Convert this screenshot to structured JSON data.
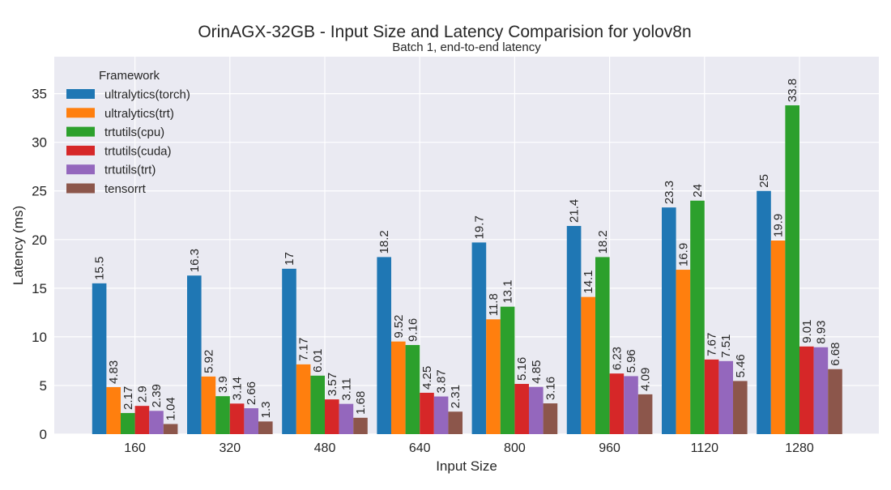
{
  "chart_data": {
    "type": "bar",
    "title": "OrinAGX-32GB - Input Size and Latency Comparision for yolov8n",
    "subtitle": "Batch 1, end-to-end latency",
    "xlabel": "Input Size",
    "ylabel": "Latency (ms)",
    "ylim": [
      0,
      38.8
    ],
    "yticks": [
      0,
      5,
      10,
      15,
      20,
      25,
      30,
      35
    ],
    "grid": true,
    "legend_title": "Framework",
    "legend_position": "top-left",
    "categories": [
      "160",
      "320",
      "480",
      "640",
      "800",
      "960",
      "1120",
      "1280"
    ],
    "series": [
      {
        "name": "ultralytics(torch)",
        "color": "#1f77b4",
        "values": [
          15.5,
          16.3,
          17,
          18.2,
          19.7,
          21.4,
          23.3,
          25
        ],
        "labels": [
          "15.5",
          "16.3",
          "17",
          "18.2",
          "19.7",
          "21.4",
          "23.3",
          "25"
        ]
      },
      {
        "name": "ultralytics(trt)",
        "color": "#ff7f0e",
        "values": [
          4.83,
          5.92,
          7.17,
          9.52,
          11.8,
          14.1,
          16.9,
          19.9
        ],
        "labels": [
          "4.83",
          "5.92",
          "7.17",
          "9.52",
          "11.8",
          "14.1",
          "16.9",
          "19.9"
        ]
      },
      {
        "name": "trtutils(cpu)",
        "color": "#2ca02c",
        "values": [
          2.17,
          3.9,
          6.01,
          9.16,
          13.1,
          18.2,
          24,
          33.8
        ],
        "labels": [
          "2.17",
          "3.9",
          "6.01",
          "9.16",
          "13.1",
          "18.2",
          "24",
          "33.8"
        ]
      },
      {
        "name": "trtutils(cuda)",
        "color": "#d62728",
        "values": [
          2.9,
          3.14,
          3.57,
          4.25,
          5.16,
          6.23,
          7.67,
          9.01
        ],
        "labels": [
          "2.9",
          "3.14",
          "3.57",
          "4.25",
          "5.16",
          "6.23",
          "7.67",
          "9.01"
        ]
      },
      {
        "name": "trtutils(trt)",
        "color": "#9467bd",
        "values": [
          2.39,
          2.66,
          3.11,
          3.87,
          4.85,
          5.96,
          7.51,
          8.93
        ],
        "labels": [
          "2.39",
          "2.66",
          "3.11",
          "3.87",
          "4.85",
          "5.96",
          "7.51",
          "8.93"
        ]
      },
      {
        "name": "tensorrt",
        "color": "#8c564b",
        "values": [
          1.04,
          1.3,
          1.68,
          2.31,
          3.16,
          4.09,
          5.46,
          6.68
        ],
        "labels": [
          "1.04",
          "1.3",
          "1.68",
          "2.31",
          "3.16",
          "4.09",
          "5.46",
          "6.68"
        ]
      }
    ]
  }
}
